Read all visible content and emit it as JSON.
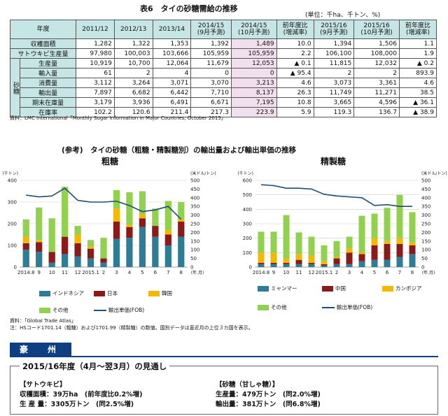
{
  "table": {
    "title": "表6　タイの砂糖需給の推移",
    "unit": "(単位：千ha、千トン、%)",
    "header": [
      "年度",
      "2011/12",
      "2012/13",
      "2013/14",
      "2014/15\n(9月予測)",
      "2014/15\n(10月予測)",
      "前年度比\n(増減率)",
      "2015/16\n(9月予測)",
      "2015/16\n(10月予測)",
      "前年度比\n(増減率)"
    ],
    "sugar_group_label": "砂糖",
    "rows": [
      {
        "label": "収穫面積",
        "values": [
          "1,282",
          "1,322",
          "1,353",
          "1,392",
          "1,489",
          "10.0",
          "1,394",
          "1,506",
          "1.1"
        ]
      },
      {
        "label": "サトウキビ生産量",
        "values": [
          "97,980",
          "100,003",
          "103,666",
          "105,959",
          "105,959",
          "2.2",
          "106,100",
          "108,000",
          "1.9"
        ]
      },
      {
        "label": "生産量",
        "values": [
          "10,919",
          "10,700",
          "12,064",
          "11,679",
          "12,053",
          "▲ 0.1",
          "11,815",
          "12,032",
          "▲ 0.2"
        ]
      },
      {
        "label": "輸入量",
        "values": [
          "61",
          "2",
          "4",
          "0",
          "0",
          "▲ 95.4",
          "2",
          "2",
          "893.9"
        ]
      },
      {
        "label": "消費量",
        "values": [
          "3,112",
          "3,264",
          "3,071",
          "3,070",
          "3,213",
          "4.6",
          "3,073",
          "3,361",
          "4.6"
        ]
      },
      {
        "label": "輸出量",
        "values": [
          "7,897",
          "6,682",
          "6,442",
          "7,710",
          "8,137",
          "26.3",
          "11,749",
          "11,271",
          "38.5"
        ]
      },
      {
        "label": "期末在庫量",
        "values": [
          "3,179",
          "3,936",
          "6,491",
          "6,671",
          "7,195",
          "10.8",
          "3,665",
          "4,596",
          "▲ 36.1"
        ]
      },
      {
        "label": "在庫率",
        "values": [
          "102.2",
          "120.6",
          "211.4",
          "217.3",
          "223.9",
          "5.9",
          "119.3",
          "136.7",
          "▲ 38.9"
        ]
      }
    ],
    "source": "資料：LMC International「Monthly Sugar Information in Major Countries, October 2015」"
  },
  "reference_title": "(参考)　タイの砂糖（粗糖・精製糖別）の輸出量および輸出単価の推移",
  "chart_data": [
    {
      "type": "bar",
      "title": "粗糖",
      "stacked": true,
      "categories": [
        "2014.8",
        "9",
        "10",
        "11",
        "12",
        "2015.1",
        "2",
        "3",
        "4",
        "5",
        "6",
        "7",
        "8"
      ],
      "x_tick_labels": [
        "2014.8",
        "9",
        "10",
        "11",
        "12",
        "2015.1",
        "2",
        "3",
        "4",
        "5",
        "6",
        "7",
        "8"
      ],
      "x_unit": "(年.月)",
      "y_left_unit": "(千トン)",
      "y_right_unit": "(米ドル/トン)",
      "ylim_left": [
        0,
        400
      ],
      "y_left_ticks": [
        0,
        100,
        200,
        300,
        400
      ],
      "ylim_right": [
        0,
        500
      ],
      "y_right_ticks": [
        0,
        50,
        100,
        150,
        200,
        250,
        300,
        350,
        400,
        450,
        500
      ],
      "series": [
        {
          "name": "インドネシア",
          "color": "#2e7d95",
          "values": [
            80,
            70,
            20,
            60,
            50,
            40,
            20,
            130,
            135,
            185,
            140,
            100,
            140
          ]
        },
        {
          "name": "日本",
          "color": "#8b1a1a",
          "values": [
            30,
            45,
            50,
            80,
            60,
            45,
            20,
            80,
            50,
            40,
            50,
            50,
            70
          ]
        },
        {
          "name": "韓国",
          "color": "#f5b800",
          "values": [
            30,
            10,
            0,
            0,
            40,
            10,
            0,
            60,
            10,
            20,
            0,
            20,
            10
          ]
        },
        {
          "name": "その他",
          "color": "#92d050",
          "values": [
            80,
            150,
            155,
            230,
            40,
            30,
            95,
            85,
            150,
            105,
            80,
            135,
            80
          ]
        }
      ],
      "line": {
        "name": "輸出単価(FOB)",
        "color": "#1f4e79",
        "values": [
          415,
          405,
          410,
          455,
          385,
          375,
          375,
          380,
          355,
          320,
          330,
          350,
          275
        ]
      }
    },
    {
      "type": "bar",
      "title": "精製糖",
      "stacked": true,
      "categories": [
        "2014.8",
        "9",
        "10",
        "11",
        "12",
        "2015.1",
        "2",
        "3",
        "4",
        "5",
        "6",
        "7",
        "8"
      ],
      "x_tick_labels": [
        "2014.8",
        "9",
        "10",
        "11",
        "12",
        "2015.1",
        "2",
        "3",
        "4",
        "5",
        "6",
        "7",
        "8"
      ],
      "x_unit": "(年.月)",
      "y_left_unit": "(千トン)",
      "y_right_unit": "(米ドル/トン)",
      "ylim_left": [
        0,
        600
      ],
      "y_left_ticks": [
        0,
        100,
        200,
        300,
        400,
        500,
        600
      ],
      "ylim_right": [
        0,
        500
      ],
      "y_right_ticks": [
        0,
        50,
        100,
        150,
        200,
        250,
        300,
        350,
        400,
        450,
        500
      ],
      "series": [
        {
          "name": "ミャンマー",
          "color": "#2e7d95",
          "values": [
            20,
            20,
            20,
            20,
            20,
            10,
            20,
            20,
            40,
            50,
            50,
            70,
            90
          ]
        },
        {
          "name": "中国",
          "color": "#8b1a1a",
          "values": [
            10,
            10,
            10,
            30,
            10,
            10,
            40,
            80,
            50,
            100,
            110,
            90,
            60
          ]
        },
        {
          "name": "カンボジア",
          "color": "#f5b800",
          "values": [
            70,
            70,
            30,
            40,
            50,
            20,
            10,
            30,
            10,
            50,
            20,
            40,
            20
          ]
        },
        {
          "name": "その他",
          "color": "#92d050",
          "values": [
            145,
            145,
            300,
            150,
            130,
            110,
            110,
            80,
            255,
            170,
            230,
            300,
            210
          ]
        }
      ],
      "line": {
        "name": "輸出単価(FOB)",
        "color": "#1f4e79",
        "values": [
          475,
          470,
          455,
          455,
          450,
          420,
          410,
          405,
          400,
          355,
          360,
          350,
          350
        ]
      }
    }
  ],
  "chart_source": "資料：「Global Trade Atlas」",
  "chart_note": "注：HSコード1701.14（粗糖）および1701.99（精製糖）の数値。国別データは直近月の上位３カ国を表示。",
  "region": {
    "name": "豪　州",
    "outlook_title": "2015/16年度（4月～翌3月）の見通し",
    "left": {
      "heading": "【サトウキビ】",
      "lines": [
        "収穫面積：39万ha　(前年度比0.2%増)",
        "生 産 量：3305万トン　(同2.5%増)"
      ]
    },
    "right": {
      "heading": "【砂糖（甘しゃ糖）】",
      "lines": [
        "生産量：479万トン　(同2.0%増)",
        "輸出量：381万トン　(同6.8%増)"
      ]
    }
  }
}
